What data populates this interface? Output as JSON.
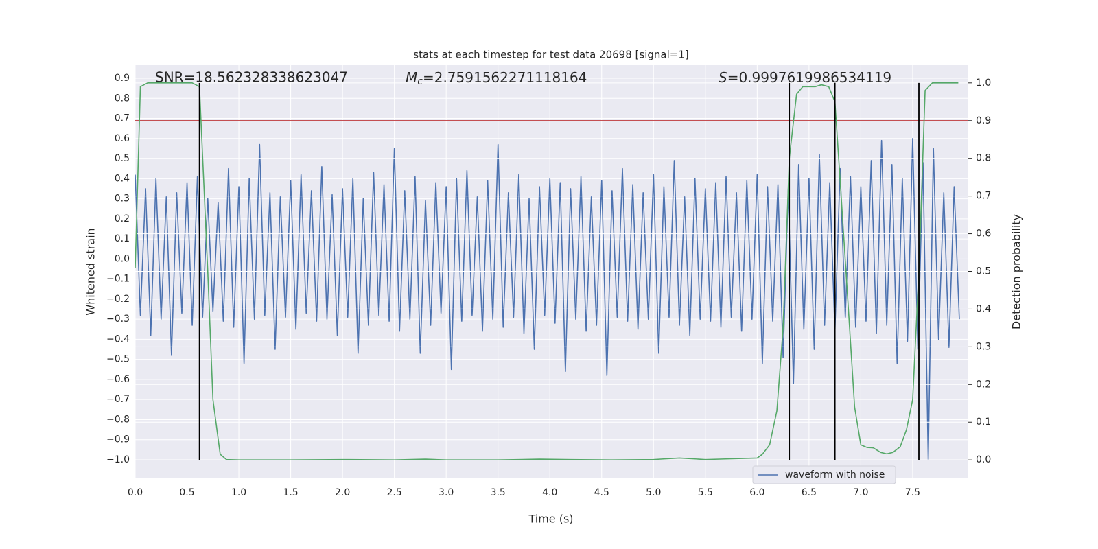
{
  "chart_data": {
    "type": "line",
    "title": "stats at each timestep for test data 20698 [signal=1]",
    "xlabel": "Time (s)",
    "ylabel": "Whitened strain",
    "y2label": "Detection probability",
    "annotations": {
      "snr_text": "SNR=18.562328338623047",
      "mc_symbol": "M",
      "mc_subscript": "c",
      "mc_text": "=2.7591562271118164",
      "s_symbol": "S",
      "s_text": "=0.9997619986534119"
    },
    "xlim": [
      0,
      8.03
    ],
    "ylim": [
      -1.089,
      0.965
    ],
    "y2lim": [
      -0.047,
      1.047
    ],
    "xticks": [
      {
        "value": 0,
        "label": "0.0"
      },
      0.5,
      {
        "value": 1,
        "label": "1.0"
      },
      1.5,
      {
        "value": 2,
        "label": "2.0"
      },
      2.5,
      {
        "value": 3,
        "label": "3.0"
      },
      3.5,
      {
        "value": 4,
        "label": "4.0"
      },
      4.5,
      {
        "value": 5,
        "label": "5.0"
      },
      5.5,
      {
        "value": 6,
        "label": "6.0"
      },
      6.5,
      {
        "value": 7,
        "label": "7.0"
      },
      7.5
    ],
    "yticks": [
      {
        "value": -1,
        "label": "−1.0"
      },
      {
        "value": -0.9,
        "label": "−0.9"
      },
      {
        "value": -0.8,
        "label": "−0.8"
      },
      {
        "value": -0.7,
        "label": "−0.7"
      },
      {
        "value": -0.6,
        "label": "−0.6"
      },
      {
        "value": -0.5,
        "label": "−0.5"
      },
      {
        "value": -0.4,
        "label": "−0.4"
      },
      {
        "value": -0.3,
        "label": "−0.3"
      },
      {
        "value": -0.2,
        "label": "−0.2"
      },
      {
        "value": -0.1,
        "label": "−0.1"
      },
      {
        "value": 0,
        "label": "0.0"
      },
      0.1,
      0.2,
      0.3,
      0.4,
      0.5,
      0.6,
      0.7,
      0.8,
      0.9
    ],
    "y2ticks": [
      {
        "value": 0,
        "label": "0.0"
      },
      0.1,
      0.2,
      0.3,
      0.4,
      0.5,
      0.6,
      0.7,
      0.8,
      0.9,
      {
        "value": 1,
        "label": "1.0"
      }
    ],
    "grid": true,
    "legend": "lower right",
    "threshold": {
      "value": 0.9,
      "color": "#c44e52",
      "axis": "y2"
    },
    "vlines": {
      "x": [
        0.62,
        6.31,
        6.75,
        7.56
      ],
      "color": "#000000"
    },
    "series": [
      {
        "name": "waveform with noise",
        "color": "#4c72b0",
        "x": [
          0,
          0.05,
          0.1,
          0.15,
          0.2,
          0.25,
          0.3,
          0.35,
          0.4,
          0.45,
          0.5,
          0.55,
          0.6,
          0.65,
          0.7,
          0.75,
          0.8,
          0.85,
          0.9,
          0.95,
          1,
          1.05,
          1.1,
          1.15,
          1.2,
          1.25,
          1.3,
          1.35,
          1.4,
          1.45,
          1.5,
          1.55,
          1.6,
          1.65,
          1.7,
          1.75,
          1.8,
          1.85,
          1.9,
          1.95,
          2,
          2.05,
          2.1,
          2.15,
          2.2,
          2.25,
          2.3,
          2.35,
          2.4,
          2.45,
          2.5,
          2.55,
          2.6,
          2.65,
          2.7,
          2.75,
          2.8,
          2.85,
          2.9,
          2.95,
          3,
          3.05,
          3.1,
          3.15,
          3.2,
          3.25,
          3.3,
          3.35,
          3.4,
          3.45,
          3.5,
          3.55,
          3.6,
          3.65,
          3.7,
          3.75,
          3.8,
          3.85,
          3.9,
          3.95,
          4,
          4.05,
          4.1,
          4.15,
          4.2,
          4.25,
          4.3,
          4.35,
          4.4,
          4.45,
          4.5,
          4.55,
          4.6,
          4.65,
          4.7,
          4.75,
          4.8,
          4.85,
          4.9,
          4.95,
          5,
          5.05,
          5.1,
          5.15,
          5.2,
          5.25,
          5.3,
          5.35,
          5.4,
          5.45,
          5.5,
          5.55,
          5.6,
          5.65,
          5.7,
          5.75,
          5.8,
          5.85,
          5.9,
          5.95,
          6,
          6.05,
          6.1,
          6.15,
          6.2,
          6.25,
          6.3,
          6.35,
          6.4,
          6.45,
          6.5,
          6.55,
          6.6,
          6.65,
          6.7,
          6.75,
          6.8,
          6.85,
          6.9,
          6.95,
          7,
          7.05,
          7.1,
          7.15,
          7.2,
          7.25,
          7.3,
          7.35,
          7.4,
          7.45,
          7.5,
          7.55,
          7.6,
          7.65,
          7.7,
          7.75,
          7.8,
          7.85,
          7.9,
          7.95
        ],
        "values": [
          0.42,
          -0.28,
          0.35,
          -0.38,
          0.4,
          -0.3,
          0.31,
          -0.48,
          0.33,
          -0.27,
          0.38,
          -0.33,
          0.41,
          -0.29,
          0.3,
          -0.26,
          0.28,
          -0.31,
          0.45,
          -0.34,
          0.36,
          -0.52,
          0.4,
          -0.3,
          0.57,
          -0.28,
          0.33,
          -0.45,
          0.31,
          -0.29,
          0.39,
          -0.35,
          0.42,
          -0.27,
          0.34,
          -0.31,
          0.46,
          -0.3,
          0.32,
          -0.38,
          0.35,
          -0.29,
          0.4,
          -0.47,
          0.3,
          -0.33,
          0.43,
          -0.28,
          0.37,
          -0.31,
          0.55,
          -0.36,
          0.34,
          -0.3,
          0.41,
          -0.47,
          0.29,
          -0.33,
          0.38,
          -0.27,
          0.36,
          -0.55,
          0.4,
          -0.31,
          0.44,
          -0.28,
          0.31,
          -0.36,
          0.39,
          -0.3,
          0.57,
          -0.34,
          0.33,
          -0.29,
          0.42,
          -0.37,
          0.3,
          -0.45,
          0.36,
          -0.28,
          0.4,
          -0.32,
          0.38,
          -0.56,
          0.35,
          -0.3,
          0.41,
          -0.36,
          0.31,
          -0.33,
          0.39,
          -0.58,
          0.34,
          -0.29,
          0.45,
          -0.31,
          0.37,
          -0.35,
          0.33,
          -0.3,
          0.42,
          -0.47,
          0.36,
          -0.29,
          0.49,
          -0.33,
          0.31,
          -0.38,
          0.4,
          -0.3,
          0.35,
          -0.31,
          0.38,
          -0.34,
          0.41,
          -0.29,
          0.33,
          -0.36,
          0.39,
          -0.3,
          0.42,
          -0.52,
          0.36,
          -0.31,
          0.37,
          -0.49,
          0.35,
          -0.62,
          0.47,
          -0.35,
          0.4,
          -0.45,
          0.52,
          -0.33,
          0.38,
          -0.36,
          0.45,
          -0.29,
          0.41,
          -0.34,
          0.36,
          -0.31,
          0.49,
          -0.37,
          0.59,
          -0.33,
          0.47,
          -0.52,
          0.4,
          -0.41,
          0.6,
          -0.45,
          0.48,
          -1.0,
          0.55,
          -0.4,
          0.33,
          -0.44,
          0.36,
          -0.3
        ]
      },
      {
        "color": "#55a868",
        "axis": "y2",
        "x": [
          0,
          0.05,
          0.12,
          0.25,
          0.4,
          0.55,
          0.62,
          0.7,
          0.75,
          0.82,
          0.88,
          1.0,
          1.5,
          2.0,
          2.5,
          2.8,
          3.0,
          3.5,
          3.9,
          4.2,
          4.6,
          5.0,
          5.25,
          5.5,
          6.0,
          6.05,
          6.12,
          6.19,
          6.25,
          6.31,
          6.38,
          6.44,
          6.5,
          6.56,
          6.62,
          6.69,
          6.75,
          6.81,
          6.88,
          6.94,
          7.0,
          7.06,
          7.12,
          7.19,
          7.25,
          7.31,
          7.38,
          7.44,
          7.5,
          7.56,
          7.62,
          7.69,
          7.75,
          7.81,
          7.88,
          7.94
        ],
        "values": [
          0.51,
          0.99,
          1,
          1,
          1,
          1,
          0.99,
          0.5,
          0.16,
          0.015,
          0.001,
          0,
          0,
          0.001,
          0,
          0.002,
          0,
          0,
          0.002,
          0.001,
          0,
          0.001,
          0.005,
          0.001,
          0.005,
          0.015,
          0.04,
          0.13,
          0.35,
          0.8,
          0.97,
          0.99,
          0.99,
          0.99,
          0.995,
          0.99,
          0.95,
          0.7,
          0.4,
          0.14,
          0.04,
          0.033,
          0.032,
          0.02,
          0.016,
          0.02,
          0.035,
          0.08,
          0.16,
          0.5,
          0.98,
          1,
          1,
          1,
          1,
          1
        ]
      }
    ]
  }
}
